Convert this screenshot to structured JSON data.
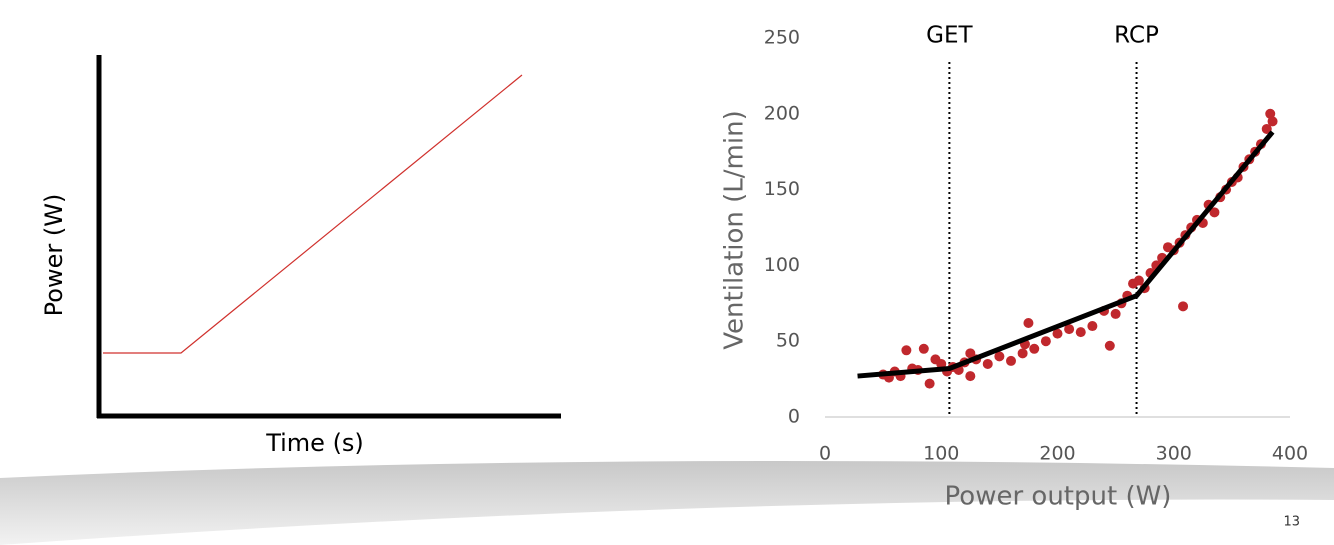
{
  "slide_number": "13",
  "chart_data": [
    {
      "type": "schematic",
      "xlabel": "Time (s)",
      "ylabel": "Power (W)",
      "color": "#d0312d"
    },
    {
      "type": "scatter",
      "xlabel": "Power output (W)",
      "ylabel": "Ventilation (L/min)",
      "xlim": [
        0,
        400
      ],
      "ylim": [
        0,
        250
      ],
      "xticks": [
        0,
        100,
        200,
        300,
        400
      ],
      "yticks": [
        0,
        50,
        100,
        150,
        200,
        250
      ],
      "color": "#c0282d",
      "x": [
        50,
        55,
        60,
        65,
        70,
        75,
        80,
        85,
        90,
        95,
        100,
        105,
        110,
        115,
        120,
        125,
        130,
        140,
        150,
        160,
        170,
        175,
        180,
        190,
        200,
        210,
        220,
        230,
        240,
        245,
        250,
        255,
        260,
        265,
        270,
        275,
        280,
        285,
        290,
        295,
        300,
        305,
        310,
        315,
        320,
        325,
        330,
        335,
        340,
        345,
        350,
        355,
        360,
        365,
        370,
        375,
        380,
        383,
        385,
        308,
        125,
        172
      ],
      "y": [
        28,
        26,
        30,
        27,
        44,
        32,
        31,
        45,
        22,
        38,
        35,
        30,
        33,
        31,
        36,
        27,
        38,
        35,
        40,
        37,
        42,
        62,
        45,
        50,
        55,
        58,
        56,
        60,
        70,
        47,
        68,
        75,
        80,
        88,
        90,
        85,
        95,
        100,
        105,
        112,
        110,
        115,
        120,
        125,
        130,
        128,
        140,
        135,
        145,
        150,
        155,
        158,
        165,
        170,
        175,
        180,
        190,
        200,
        195,
        73,
        42,
        48
      ],
      "fit": {
        "x": [
          28,
          107,
          268,
          385
        ],
        "y": [
          27,
          32,
          80,
          188
        ],
        "color": "#000000"
      },
      "thresholds": [
        {
          "label": "GET",
          "x": 107
        },
        {
          "label": "RCP",
          "x": 268
        }
      ]
    }
  ]
}
